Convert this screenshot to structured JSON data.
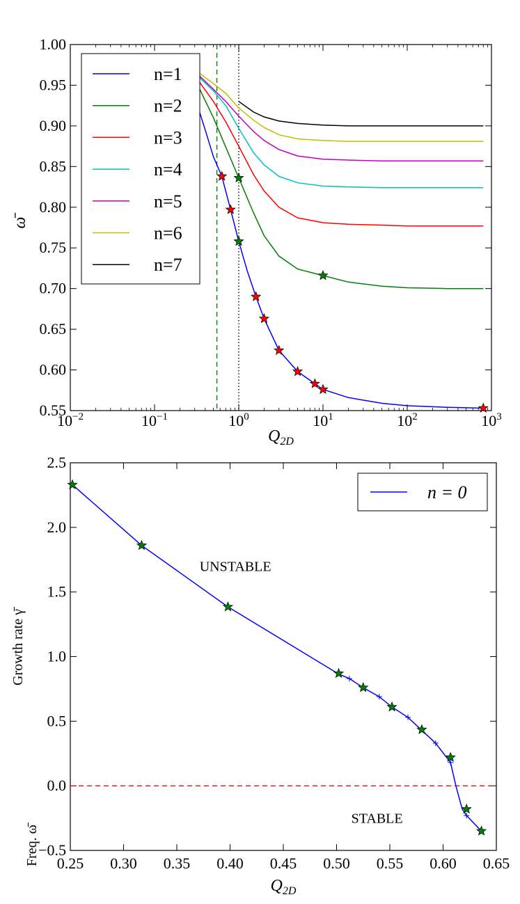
{
  "chart_data": [
    {
      "type": "line",
      "xscale": "log",
      "xlim": [
        0.01,
        1000
      ],
      "ylim": [
        0.55,
        1.0
      ],
      "xlabel": "Q_2D",
      "ylabel": "ω̄",
      "xticks": [
        0.01,
        0.1,
        1,
        10,
        100,
        1000
      ],
      "xtick_labels": [
        {
          "base": "10",
          "exp": "−2"
        },
        {
          "base": "10",
          "exp": "−1"
        },
        {
          "base": "10",
          "exp": "0"
        },
        {
          "base": "10",
          "exp": "1"
        },
        {
          "base": "10",
          "exp": "2"
        },
        {
          "base": "10",
          "exp": "3"
        }
      ],
      "yticks": [
        0.55,
        0.6,
        0.65,
        0.7,
        0.75,
        0.8,
        0.85,
        0.9,
        0.95,
        1.0
      ],
      "ytick_labels": [
        "0.55",
        "0.60",
        "0.65",
        "0.70",
        "0.75",
        "0.80",
        "0.85",
        "0.90",
        "0.95",
        "1.00"
      ],
      "legend_position": "top-left",
      "vlines": [
        {
          "x": 0.55,
          "style": "dashed",
          "color": "#008000"
        },
        {
          "x": 1.0,
          "style": "dotted",
          "color": "#000000"
        }
      ],
      "series": [
        {
          "name": "n=1",
          "color": "#0000ff",
          "x": [
            0.3,
            0.4,
            0.5,
            0.63,
            0.8,
            1.0,
            1.26,
            1.6,
            2.0,
            3.0,
            5.0,
            8.0,
            10,
            20,
            50,
            100,
            300,
            800
          ],
          "y": [
            0.936,
            0.895,
            0.862,
            0.838,
            0.797,
            0.758,
            0.722,
            0.69,
            0.663,
            0.624,
            0.598,
            0.583,
            0.576,
            0.566,
            0.559,
            0.556,
            0.554,
            0.553
          ]
        },
        {
          "name": "n=2",
          "color": "#008000",
          "x": [
            0.3,
            0.5,
            0.7,
            1.0,
            1.5,
            2,
            3,
            5,
            10,
            20,
            50,
            100,
            300,
            800
          ],
          "y": [
            0.958,
            0.91,
            0.874,
            0.836,
            0.793,
            0.765,
            0.74,
            0.724,
            0.716,
            0.708,
            0.703,
            0.701,
            0.7,
            0.7
          ]
        },
        {
          "name": "n=3",
          "color": "#ff0000",
          "x": [
            0.3,
            0.5,
            0.7,
            1.0,
            1.5,
            2,
            3,
            5,
            10,
            20,
            50,
            100,
            300,
            800
          ],
          "y": [
            0.962,
            0.93,
            0.905,
            0.875,
            0.84,
            0.82,
            0.8,
            0.787,
            0.781,
            0.779,
            0.778,
            0.777,
            0.777,
            0.777
          ]
        },
        {
          "name": "n=4",
          "color": "#00bfbf",
          "x": [
            0.3,
            0.5,
            0.7,
            1.0,
            1.5,
            2,
            3,
            5,
            10,
            20,
            50,
            100,
            300,
            800
          ],
          "y": [
            0.965,
            0.943,
            0.925,
            0.897,
            0.867,
            0.852,
            0.838,
            0.83,
            0.826,
            0.825,
            0.824,
            0.824,
            0.824,
            0.824
          ]
        },
        {
          "name": "n=5",
          "color": "#bf00bf",
          "x": [
            0.3,
            0.5,
            0.7,
            1.0,
            1.5,
            2,
            3,
            5,
            10,
            20,
            50,
            100,
            300,
            800
          ],
          "y": [
            0.967,
            0.945,
            0.93,
            0.912,
            0.893,
            0.882,
            0.871,
            0.863,
            0.859,
            0.858,
            0.857,
            0.857,
            0.857,
            0.857
          ]
        },
        {
          "name": "n=6",
          "color": "#bfbf00",
          "x": [
            0.3,
            0.5,
            0.7,
            1.0,
            1.5,
            2,
            3,
            5,
            10,
            20,
            50,
            100,
            300,
            800
          ],
          "y": [
            0.969,
            0.952,
            0.94,
            0.922,
            0.907,
            0.898,
            0.889,
            0.884,
            0.882,
            0.881,
            0.881,
            0.881,
            0.881,
            0.881
          ]
        },
        {
          "name": "n=7",
          "color": "#000000",
          "x": [
            1.0,
            1.5,
            2,
            3,
            5,
            10,
            20,
            50,
            100,
            300,
            800
          ],
          "y": [
            0.93,
            0.917,
            0.911,
            0.906,
            0.903,
            0.901,
            0.9,
            0.9,
            0.9,
            0.9,
            0.9
          ]
        }
      ],
      "markers": [
        {
          "color": "#ff0000",
          "x": [
            0.63,
            0.8,
            1.6,
            2.0,
            3.0,
            5.0,
            8.0,
            10,
            800
          ],
          "y": [
            0.838,
            0.797,
            0.69,
            0.663,
            0.624,
            0.598,
            0.583,
            0.576,
            0.553
          ]
        },
        {
          "color": "#008000",
          "x": [
            1.0,
            1.0,
            10
          ],
          "y": [
            0.836,
            0.758,
            0.716
          ]
        }
      ]
    },
    {
      "type": "line",
      "xlim": [
        0.25,
        0.65
      ],
      "ylim": [
        -0.5,
        2.5
      ],
      "xlabel": "Q_2D",
      "ylabel": "Growth rate γ̄",
      "ylabel2": "Freq. ω̄",
      "xticks": [
        0.25,
        0.3,
        0.35,
        0.4,
        0.45,
        0.5,
        0.55,
        0.6,
        0.65
      ],
      "xtick_labels": [
        "0.25",
        "0.30",
        "0.35",
        "0.40",
        "0.45",
        "0.50",
        "0.55",
        "0.60",
        "0.65"
      ],
      "yticks": [
        -0.5,
        0.0,
        0.5,
        1.0,
        1.5,
        2.0,
        2.5
      ],
      "ytick_labels": [
        "−0.5",
        "0.0",
        "0.5",
        "1.0",
        "1.5",
        "2.0",
        "2.5"
      ],
      "legend_position": "top-right",
      "legend_label": "n = 0",
      "series": [
        {
          "name": "n = 0",
          "color": "#0000ff",
          "x": [
            0.252,
            0.317,
            0.398,
            0.502,
            0.512,
            0.525,
            0.54,
            0.552,
            0.567,
            0.58,
            0.593,
            0.607,
            0.612,
            0.618,
            0.622,
            0.636
          ],
          "y": [
            2.33,
            1.86,
            1.385,
            0.865,
            0.83,
            0.76,
            0.69,
            0.61,
            0.53,
            0.43,
            0.33,
            0.18,
            0.0,
            -0.18,
            -0.23,
            -0.35
          ]
        }
      ],
      "plus_markers": {
        "x": [
          0.512,
          0.54,
          0.567,
          0.593,
          0.607,
          0.622
        ],
        "y": [
          0.83,
          0.69,
          0.53,
          0.33,
          0.18,
          -0.23
        ]
      },
      "star_markers": {
        "color": "#008000",
        "x": [
          0.252,
          0.317,
          0.398,
          0.502,
          0.525,
          0.552,
          0.58,
          0.607,
          0.622,
          0.636
        ],
        "y": [
          2.33,
          1.86,
          1.385,
          0.87,
          0.76,
          0.61,
          0.435,
          0.22,
          -0.18,
          -0.35
        ]
      },
      "hline": {
        "y": 0.0,
        "style": "dashed",
        "color": "#ff0000"
      },
      "annotations": [
        {
          "text": "UNSTABLE",
          "x": 0.405,
          "y": 1.7
        },
        {
          "text": "STABLE",
          "x": 0.538,
          "y": -0.25
        }
      ]
    }
  ]
}
